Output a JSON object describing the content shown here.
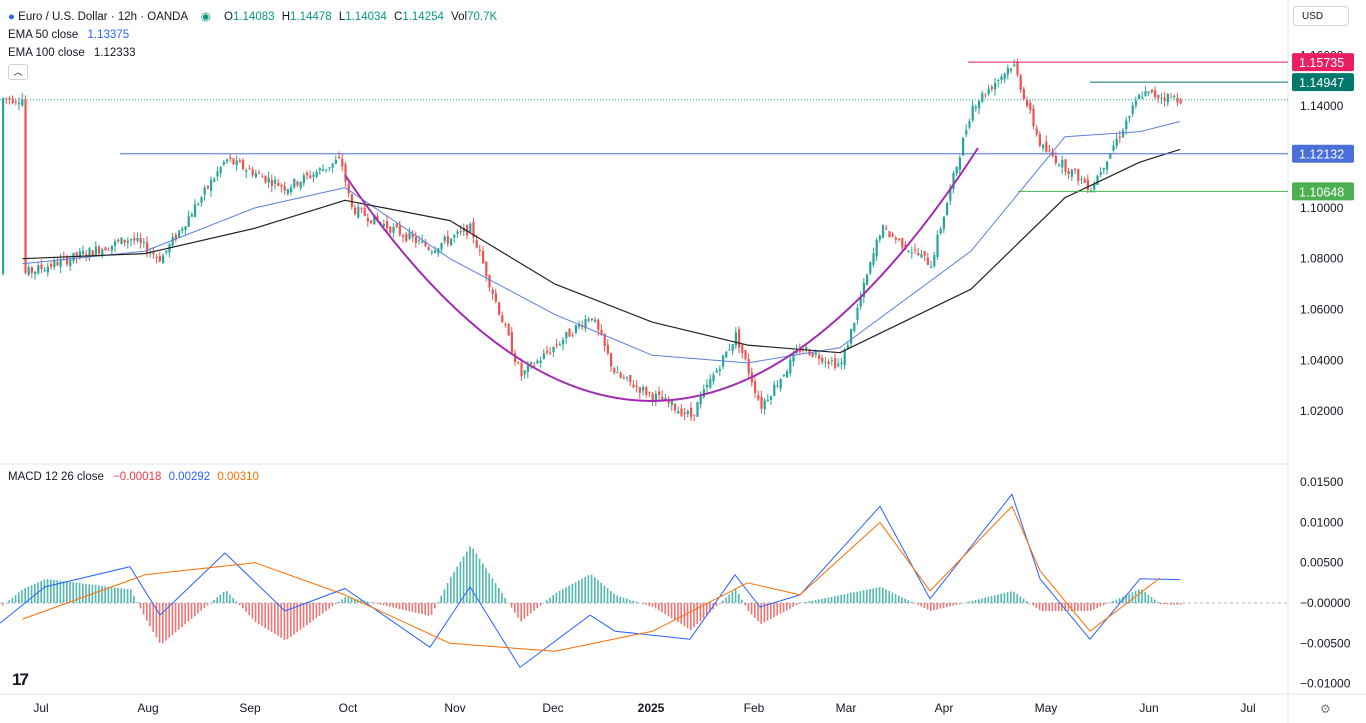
{
  "header": {
    "symbol": "Euro / U.S. Dollar · 12h · OANDA",
    "open_label": "O",
    "open": "1.14083",
    "high_label": "H",
    "high": "1.14478",
    "low_label": "L",
    "low": "1.14034",
    "close_label": "C",
    "close": "1.14254",
    "vol_label": "Vol",
    "vol": "70.7K"
  },
  "indicators": {
    "ema50_label": "EMA 50 close",
    "ema50_value": "1.13375",
    "ema100_label": "EMA 100 close",
    "ema100_value": "1.12333",
    "macd_label": "MACD 12 26 close",
    "macd_hist": "−0.00018",
    "macd_line": "0.00292",
    "macd_signal": "0.00310"
  },
  "currency": "USD",
  "colors": {
    "up": "#26a69a",
    "down": "#ef5350",
    "ema50": "#5b7fdb",
    "ema100": "#222222",
    "cup": "#a02cb0",
    "resistance": "#e91e63",
    "support1": "#4a6fd8",
    "support2": "#4caf50",
    "level_teal": "#00796b",
    "macd": "#2962ff",
    "signal": "#ff6d00"
  },
  "chart_data": {
    "type": "line",
    "title": "Euro / U.S. Dollar · 12h · OANDA",
    "x_ticks": [
      "Jul",
      "Aug",
      "Sep",
      "Oct",
      "Nov",
      "Dec",
      "2025",
      "Feb",
      "Mar",
      "Apr",
      "May",
      "Jun",
      "Jul"
    ],
    "ylim": [
      1.0,
      1.17
    ],
    "y_ticks": [
      "1.16000",
      "1.14000",
      "1.12000",
      "1.10000",
      "1.08000",
      "1.06000",
      "1.04000",
      "1.02000"
    ],
    "price_path": [
      [
        "Jul",
        1.074
      ],
      [
        "Aug",
        1.088
      ],
      [
        "Aug",
        1.08
      ],
      [
        "Sep",
        1.119
      ],
      [
        "Sep",
        1.108
      ],
      [
        "Oct",
        1.119
      ],
      [
        "Oct",
        1.1
      ],
      [
        "Nov",
        1.084
      ],
      [
        "Nov",
        1.092
      ],
      [
        "Dec",
        1.034
      ],
      [
        "Dec",
        1.058
      ],
      [
        "2025",
        1.034
      ],
      [
        "2025",
        1.018
      ],
      [
        "Feb",
        1.05
      ],
      [
        "Feb",
        1.022
      ],
      [
        "Mar",
        1.045
      ],
      [
        "Mar",
        1.038
      ],
      [
        "Mar",
        1.092
      ],
      [
        "Apr",
        1.078
      ],
      [
        "Apr",
        1.14
      ],
      [
        "Apr",
        1.157
      ],
      [
        "May",
        1.124
      ],
      [
        "May",
        1.108
      ],
      [
        "Jun",
        1.145
      ],
      [
        "Jun",
        1.143
      ]
    ],
    "ema50_path": [
      [
        "Jul",
        1.078
      ],
      [
        "Aug",
        1.083
      ],
      [
        "Sep",
        1.1
      ],
      [
        "Oct",
        1.108
      ],
      [
        "Nov",
        1.08
      ],
      [
        "Dec",
        1.058
      ],
      [
        "2025",
        1.042
      ],
      [
        "Feb",
        1.039
      ],
      [
        "Mar",
        1.045
      ],
      [
        "Apr",
        1.083
      ],
      [
        "May",
        1.128
      ],
      [
        "Jun",
        1.13
      ],
      [
        "Jun",
        1.134
      ]
    ],
    "ema100_path": [
      [
        "Jul",
        1.08
      ],
      [
        "Aug",
        1.082
      ],
      [
        "Sep",
        1.092
      ],
      [
        "Oct",
        1.103
      ],
      [
        "Nov",
        1.095
      ],
      [
        "Dec",
        1.07
      ],
      [
        "2025",
        1.055
      ],
      [
        "Feb",
        1.046
      ],
      [
        "Mar",
        1.043
      ],
      [
        "Apr",
        1.068
      ],
      [
        "May",
        1.104
      ],
      [
        "Jun",
        1.118
      ],
      [
        "Jun",
        1.123
      ]
    ],
    "horizontal_levels": [
      {
        "label": "1.15735",
        "value": 1.15735,
        "from": "Apr",
        "color": "#e91e63"
      },
      {
        "label": "1.14947",
        "value": 1.14947,
        "from": "May",
        "color": "#00796b"
      },
      {
        "label": "1.12132",
        "value": 1.12132,
        "from": "Aug",
        "color": "#4a6fd8"
      },
      {
        "label": "1.10648",
        "value": 1.10648,
        "from": "Apr",
        "color": "#4caf50"
      }
    ],
    "current_price": 1.14254,
    "macd": {
      "label": "MACD 12 26 close",
      "ylim": [
        -0.01,
        0.015
      ],
      "y_ticks": [
        "0.01500",
        "0.01000",
        "0.00500",
        "−0.00000",
        "−0.00500",
        "−0.01000"
      ],
      "macd_path": [
        [
          "Jul",
          -0.0025
        ],
        [
          "Jul",
          0.002
        ],
        [
          "Aug",
          0.0045
        ],
        [
          "Aug",
          -0.0015
        ],
        [
          "Sep",
          0.0062
        ],
        [
          "Sep",
          -0.001
        ],
        [
          "Oct",
          0.0018
        ],
        [
          "Nov",
          -0.0055
        ],
        [
          "Nov",
          0.002
        ],
        [
          "Dec",
          -0.008
        ],
        [
          "Dec",
          -0.0015
        ],
        [
          "2025",
          -0.0035
        ],
        [
          "2025",
          -0.0045
        ],
        [
          "Feb",
          0.0035
        ],
        [
          "Feb",
          -0.0005
        ],
        [
          "Mar",
          0.001
        ],
        [
          "Mar",
          0.012
        ],
        [
          "Apr",
          0.0005
        ],
        [
          "Apr",
          0.0135
        ],
        [
          "May",
          0.003
        ],
        [
          "May",
          -0.0045
        ],
        [
          "Jun",
          0.003
        ],
        [
          "Jun",
          0.0029
        ]
      ],
      "signal_path": [
        [
          "Jul",
          -0.002
        ],
        [
          "Aug",
          0.0035
        ],
        [
          "Sep",
          0.005
        ],
        [
          "Oct",
          0.001
        ],
        [
          "Nov",
          -0.005
        ],
        [
          "Dec",
          -0.006
        ],
        [
          "2025",
          -0.0035
        ],
        [
          "Feb",
          0.0025
        ],
        [
          "Mar",
          0.001
        ],
        [
          "Mar",
          0.01
        ],
        [
          "Apr",
          0.0015
        ],
        [
          "Apr",
          0.012
        ],
        [
          "May",
          0.004
        ],
        [
          "May",
          -0.0035
        ],
        [
          "Jun",
          0.0031
        ]
      ]
    }
  }
}
